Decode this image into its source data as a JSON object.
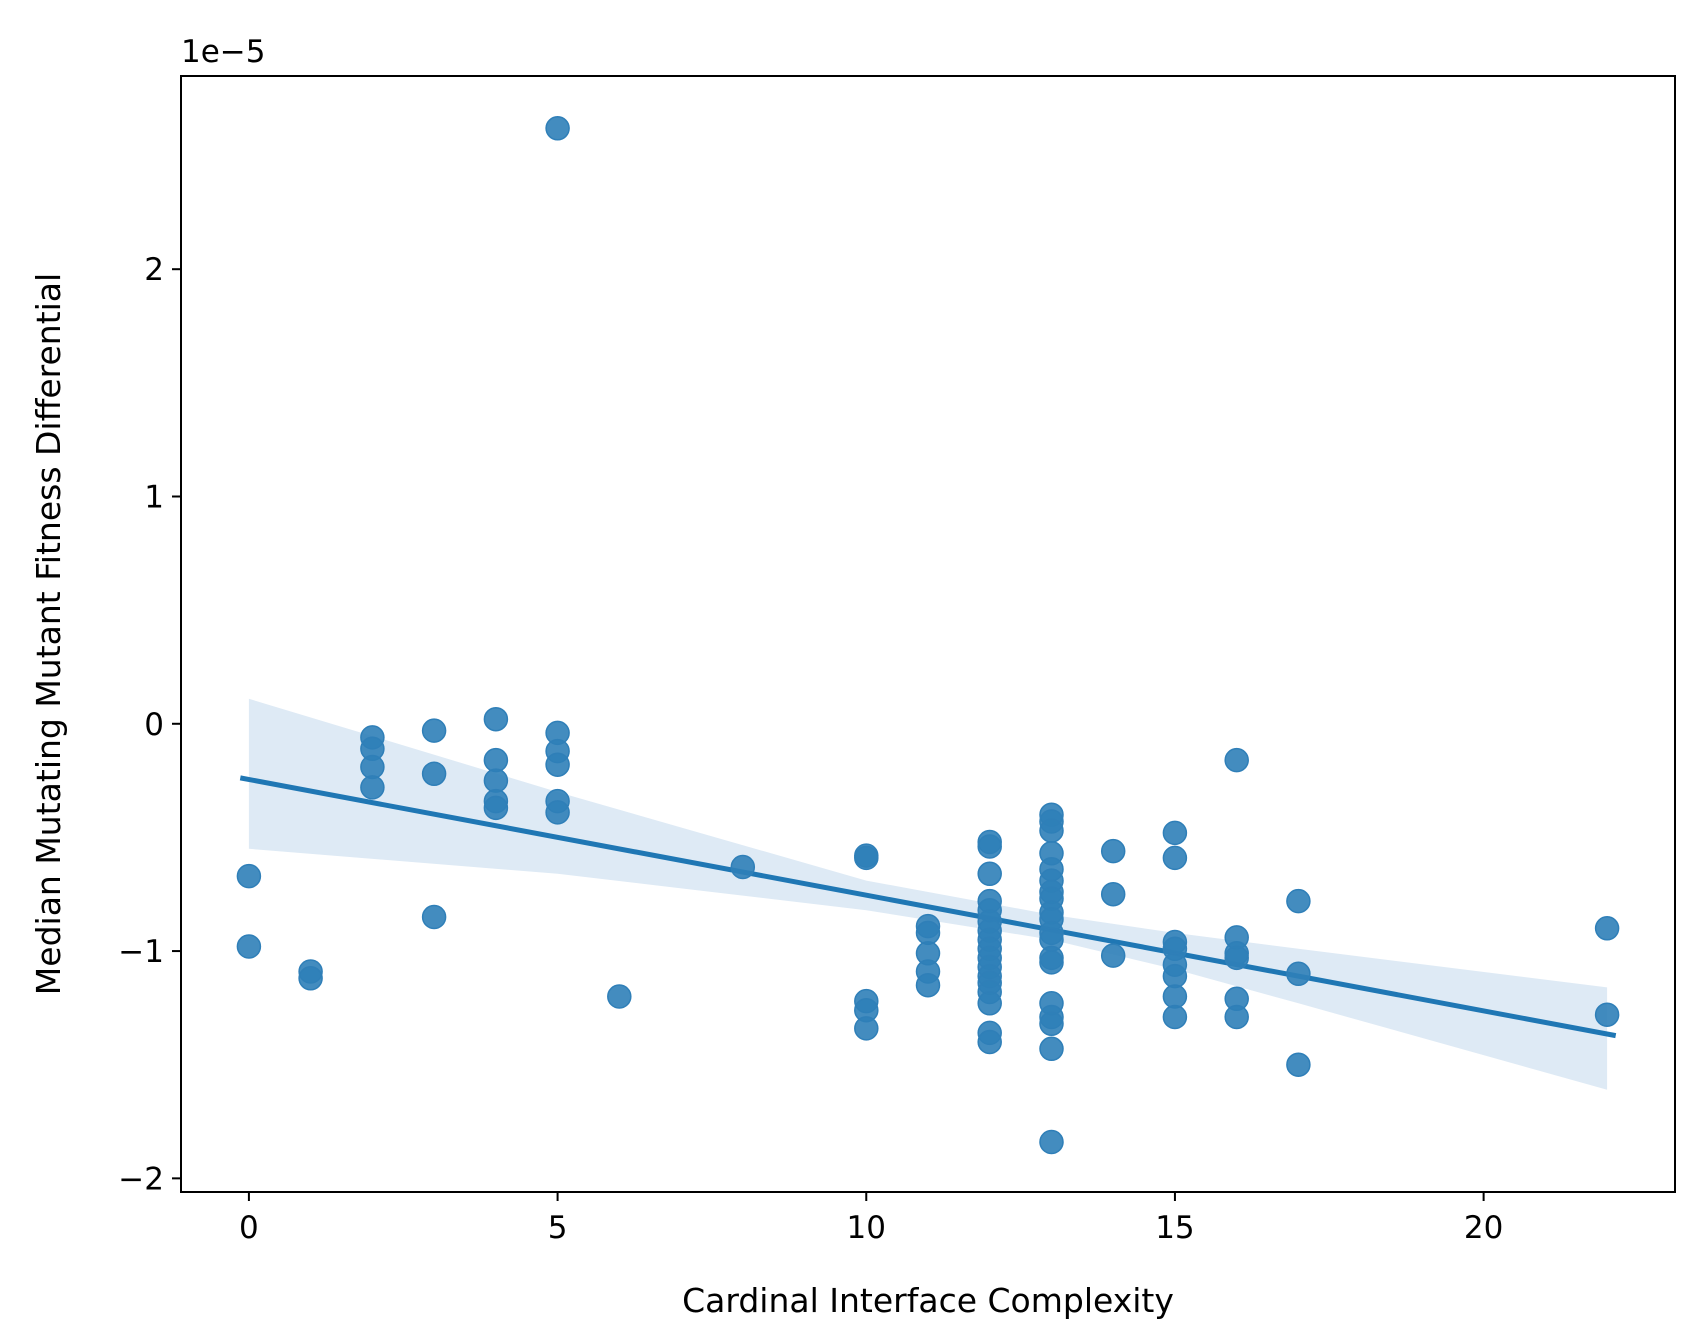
{
  "chart_data": {
    "type": "scatter",
    "title": "",
    "xlabel": "Cardinal Interface Complexity",
    "ylabel": "Median Mutating Mutant Fitness Differential",
    "y_offset_label": "1e−5",
    "y_scale": 1e-05,
    "xlim": [
      -1.1,
      23.1
    ],
    "ylim": [
      -2.06,
      2.85
    ],
    "x_ticks": [
      0,
      5,
      10,
      15,
      20
    ],
    "x_tick_labels": [
      "0",
      "5",
      "10",
      "15",
      "20"
    ],
    "y_ticks": [
      -2,
      -1,
      0,
      1,
      2
    ],
    "y_tick_labels": [
      "−2",
      "−1",
      "0",
      "1",
      "2"
    ],
    "grid": false,
    "legend": "none",
    "colors": {
      "points": "#2f7fb8",
      "line": "#1f77b4",
      "band": "#deeaf5"
    },
    "points": [
      {
        "x": 0,
        "y": -0.67
      },
      {
        "x": 0,
        "y": -0.98
      },
      {
        "x": 1,
        "y": -1.09
      },
      {
        "x": 1,
        "y": -1.12
      },
      {
        "x": 2,
        "y": -0.06
      },
      {
        "x": 2,
        "y": -0.11
      },
      {
        "x": 2,
        "y": -0.19
      },
      {
        "x": 2,
        "y": -0.28
      },
      {
        "x": 3,
        "y": -0.03
      },
      {
        "x": 3,
        "y": -0.22
      },
      {
        "x": 3,
        "y": -0.85
      },
      {
        "x": 4,
        "y": 0.02
      },
      {
        "x": 4,
        "y": -0.16
      },
      {
        "x": 4,
        "y": -0.25
      },
      {
        "x": 4,
        "y": -0.34
      },
      {
        "x": 4,
        "y": -0.37
      },
      {
        "x": 5,
        "y": 2.62
      },
      {
        "x": 5,
        "y": -0.04
      },
      {
        "x": 5,
        "y": -0.12
      },
      {
        "x": 5,
        "y": -0.18
      },
      {
        "x": 5,
        "y": -0.34
      },
      {
        "x": 5,
        "y": -0.39
      },
      {
        "x": 6,
        "y": -1.2
      },
      {
        "x": 8,
        "y": -0.63
      },
      {
        "x": 10,
        "y": -0.58
      },
      {
        "x": 10,
        "y": -0.59
      },
      {
        "x": 10,
        "y": -1.22
      },
      {
        "x": 10,
        "y": -1.26
      },
      {
        "x": 10,
        "y": -1.34
      },
      {
        "x": 11,
        "y": -0.89
      },
      {
        "x": 11,
        "y": -0.92
      },
      {
        "x": 11,
        "y": -1.01
      },
      {
        "x": 11,
        "y": -1.09
      },
      {
        "x": 11,
        "y": -1.15
      },
      {
        "x": 12,
        "y": -0.52
      },
      {
        "x": 12,
        "y": -0.54
      },
      {
        "x": 12,
        "y": -0.66
      },
      {
        "x": 12,
        "y": -0.78
      },
      {
        "x": 12,
        "y": -0.82
      },
      {
        "x": 12,
        "y": -0.87
      },
      {
        "x": 12,
        "y": -0.91
      },
      {
        "x": 12,
        "y": -0.95
      },
      {
        "x": 12,
        "y": -0.99
      },
      {
        "x": 12,
        "y": -1.03
      },
      {
        "x": 12,
        "y": -1.07
      },
      {
        "x": 12,
        "y": -1.11
      },
      {
        "x": 12,
        "y": -1.14
      },
      {
        "x": 12,
        "y": -1.18
      },
      {
        "x": 12,
        "y": -1.23
      },
      {
        "x": 12,
        "y": -1.36
      },
      {
        "x": 12,
        "y": -1.4
      },
      {
        "x": 13,
        "y": -0.4
      },
      {
        "x": 13,
        "y": -0.43
      },
      {
        "x": 13,
        "y": -0.47
      },
      {
        "x": 13,
        "y": -0.57
      },
      {
        "x": 13,
        "y": -0.64
      },
      {
        "x": 13,
        "y": -0.69
      },
      {
        "x": 13,
        "y": -0.74
      },
      {
        "x": 13,
        "y": -0.77
      },
      {
        "x": 13,
        "y": -0.83
      },
      {
        "x": 13,
        "y": -0.86
      },
      {
        "x": 13,
        "y": -0.92
      },
      {
        "x": 13,
        "y": -0.95
      },
      {
        "x": 13,
        "y": -1.03
      },
      {
        "x": 13,
        "y": -1.05
      },
      {
        "x": 13,
        "y": -1.23
      },
      {
        "x": 13,
        "y": -1.29
      },
      {
        "x": 13,
        "y": -1.32
      },
      {
        "x": 13,
        "y": -1.43
      },
      {
        "x": 13,
        "y": -1.84
      },
      {
        "x": 14,
        "y": -0.56
      },
      {
        "x": 14,
        "y": -0.75
      },
      {
        "x": 14,
        "y": -1.02
      },
      {
        "x": 15,
        "y": -0.48
      },
      {
        "x": 15,
        "y": -0.59
      },
      {
        "x": 15,
        "y": -0.96
      },
      {
        "x": 15,
        "y": -0.99
      },
      {
        "x": 15,
        "y": -1.06
      },
      {
        "x": 15,
        "y": -1.11
      },
      {
        "x": 15,
        "y": -1.2
      },
      {
        "x": 15,
        "y": -1.29
      },
      {
        "x": 16,
        "y": -0.16
      },
      {
        "x": 16,
        "y": -0.94
      },
      {
        "x": 16,
        "y": -1.01
      },
      {
        "x": 16,
        "y": -1.03
      },
      {
        "x": 16,
        "y": -1.21
      },
      {
        "x": 16,
        "y": -1.29
      },
      {
        "x": 17,
        "y": -0.78
      },
      {
        "x": 17,
        "y": -1.1
      },
      {
        "x": 17,
        "y": -1.5
      },
      {
        "x": 22,
        "y": -0.9
      },
      {
        "x": 22,
        "y": -1.28
      }
    ],
    "regression_line": {
      "x": [
        -0.1,
        22.1
      ],
      "y": [
        -0.24,
        -1.37
      ]
    },
    "confidence_band": {
      "x": [
        0,
        5,
        10,
        13,
        15,
        17,
        22
      ],
      "upper": [
        0.11,
        -0.3,
        -0.69,
        -0.84,
        -0.92,
        -0.99,
        -1.16
      ],
      "lower": [
        -0.55,
        -0.66,
        -0.82,
        -0.95,
        -1.08,
        -1.23,
        -1.61
      ]
    }
  }
}
